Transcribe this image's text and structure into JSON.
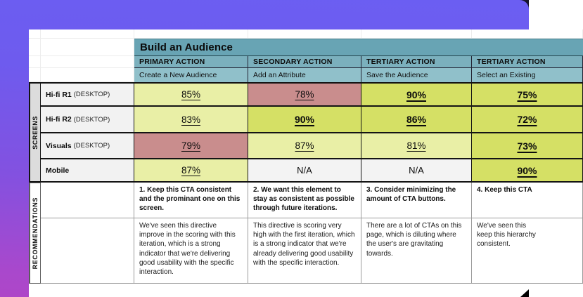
{
  "sheet": {
    "title": "Build an Audience",
    "sections": {
      "screens_label": "SCREENS",
      "recommendations_label": "RECOMMENDATIONS"
    },
    "action_columns": [
      {
        "type": "PRIMARY ACTION",
        "task": "Create a New Audience"
      },
      {
        "type": "SECONDARY ACTION",
        "task": "Add an Attribute"
      },
      {
        "type": "TERTIARY ACTION",
        "task": "Save the Audience"
      },
      {
        "type": "TERTIARY ACTION",
        "task": "Select an Existing"
      }
    ],
    "screen_rows": [
      {
        "name": "Hi-fi R1",
        "suffix": "(DESKTOP)",
        "scores": [
          {
            "value": "85%",
            "tone": "light-green",
            "bold": false
          },
          {
            "value": "78%",
            "tone": "red",
            "bold": false
          },
          {
            "value": "90%",
            "tone": "green",
            "bold": true
          },
          {
            "value": "75%",
            "tone": "green",
            "bold": true
          }
        ]
      },
      {
        "name": "Hi-fi R2",
        "suffix": "(DESKTOP)",
        "scores": [
          {
            "value": "83%",
            "tone": "light-green",
            "bold": false
          },
          {
            "value": "90%",
            "tone": "green",
            "bold": true
          },
          {
            "value": "86%",
            "tone": "green",
            "bold": true
          },
          {
            "value": "72%",
            "tone": "green",
            "bold": true
          }
        ]
      },
      {
        "name": "Visuals",
        "suffix": "(DESKTOP)",
        "scores": [
          {
            "value": "79%",
            "tone": "red",
            "bold": false
          },
          {
            "value": "87%",
            "tone": "light-green",
            "bold": false
          },
          {
            "value": "81%",
            "tone": "light-green",
            "bold": false
          },
          {
            "value": "73%",
            "tone": "green",
            "bold": true
          }
        ]
      },
      {
        "name": "Mobile",
        "suffix": "",
        "scores": [
          {
            "value": "87%",
            "tone": "light-green",
            "bold": false
          },
          {
            "value": "N/A",
            "tone": "none",
            "bold": false
          },
          {
            "value": "N/A",
            "tone": "none",
            "bold": false
          },
          {
            "value": "90%",
            "tone": "green",
            "bold": true
          }
        ]
      }
    ],
    "recommendations": [
      {
        "title": "1. Keep this CTA consistent and the prominant one on this screen.",
        "body": "We've seen this directive improve in the scoring with this iteration, which is a strong indicator that we're delivering good usability with the specific interaction."
      },
      {
        "title": "2. We want this element to stay as consistent as possible through future iterations.",
        "body": "This directive is scoring very high with the first iteration, which is a strong indicator that we're already delivering good usability with the specific interaction."
      },
      {
        "title": "3. Consider minimizing the amount of CTA buttons.",
        "body": "There are a lot of CTAs on this page, which is diluting where the user's are gravitating towards."
      },
      {
        "title": "4. Keep this CTA",
        "body": "We've seen this\nkeep this hierarchy\nconsistent."
      }
    ]
  },
  "colors": {
    "teal_title": "#68A4B4",
    "teal_action": "#7BB0BD",
    "teal_task": "#90C0CA",
    "green_strong": "#D5E065",
    "green_light": "#E9EFA6",
    "red": "#C98D8D",
    "label_bg": "#F2F2F2",
    "screens_bg": "#DCDCDC",
    "purple_top": "#6B5EF2",
    "purple_bottom": "#AE46C8"
  }
}
